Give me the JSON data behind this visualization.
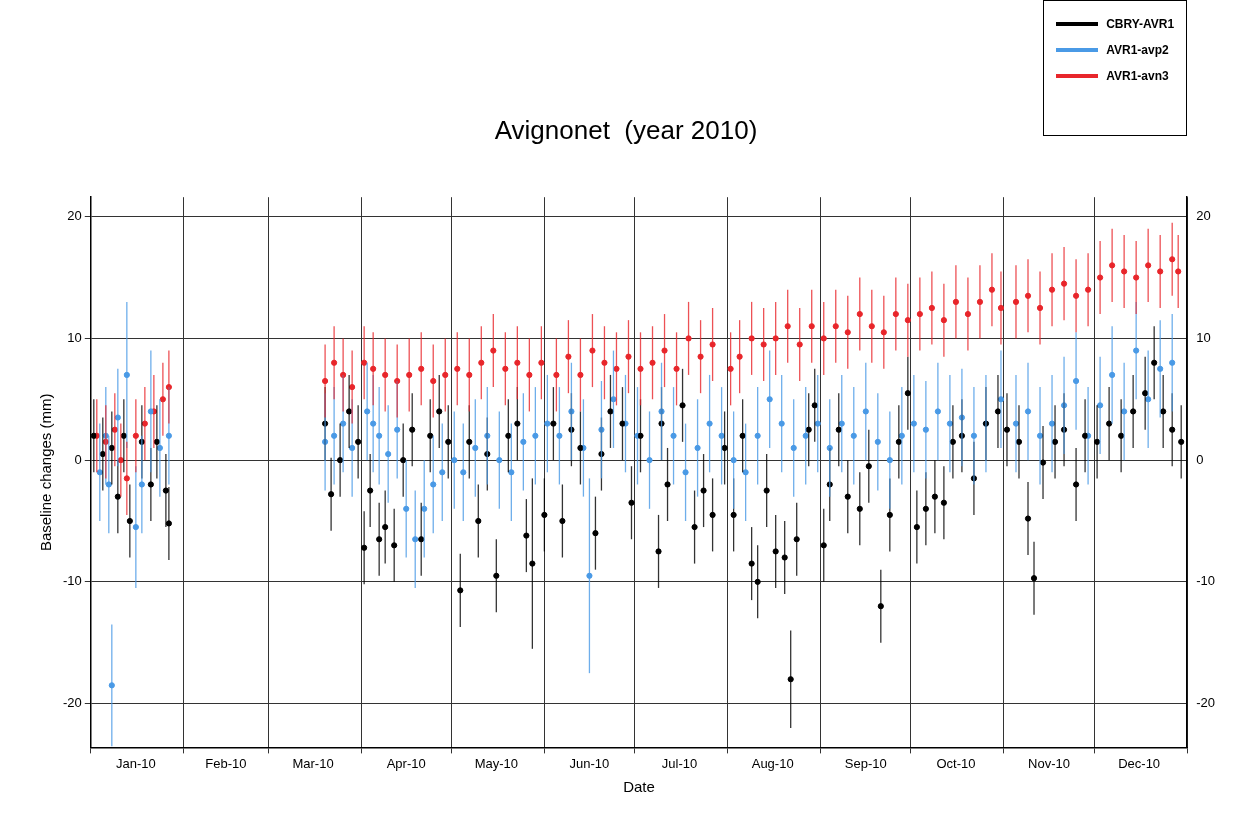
{
  "chart_data": {
    "type": "scatter",
    "title": "Avignonet  (year 2010)",
    "xlabel": "Date",
    "ylabel": "Baseline changes (mm)",
    "xlim": [
      "2010-01-01",
      "2011-01-01"
    ],
    "xticks": [
      {
        "value": "2010-01-01",
        "label": null
      },
      {
        "value": "2010-01-16",
        "label": "Jan-10"
      },
      {
        "value": "2010-02-01",
        "label": null
      },
      {
        "value": "2010-02-15",
        "label": "Feb-10"
      },
      {
        "value": "2010-03-01",
        "label": null
      },
      {
        "value": "2010-03-16",
        "label": "Mar-10"
      },
      {
        "value": "2010-04-01",
        "label": null
      },
      {
        "value": "2010-04-16",
        "label": "Apr-10"
      },
      {
        "value": "2010-05-01",
        "label": null
      },
      {
        "value": "2010-05-16",
        "label": "May-10"
      },
      {
        "value": "2010-06-01",
        "label": null
      },
      {
        "value": "2010-06-16",
        "label": "Jun-10"
      },
      {
        "value": "2010-07-01",
        "label": null
      },
      {
        "value": "2010-07-16",
        "label": "Jul-10"
      },
      {
        "value": "2010-08-01",
        "label": null
      },
      {
        "value": "2010-08-16",
        "label": "Aug-10"
      },
      {
        "value": "2010-09-01",
        "label": null
      },
      {
        "value": "2010-09-16",
        "label": "Sep-10"
      },
      {
        "value": "2010-10-01",
        "label": null
      },
      {
        "value": "2010-10-16",
        "label": "Oct-10"
      },
      {
        "value": "2010-11-01",
        "label": null
      },
      {
        "value": "2010-11-16",
        "label": "Nov-10"
      },
      {
        "value": "2010-12-01",
        "label": null
      },
      {
        "value": "2010-12-16",
        "label": "Dec-10"
      },
      {
        "value": "2011-01-01",
        "label": null
      }
    ],
    "ylim": [
      -23.6,
      21.6
    ],
    "yticks": [
      -20,
      -10,
      0,
      10,
      20
    ],
    "y2lim": [
      -23.6,
      21.6
    ],
    "y2ticks": [
      -20,
      -10,
      0,
      10,
      20
    ],
    "grid": true,
    "legend": "top right",
    "marker": "circle",
    "series": [
      {
        "name": "CBRY-AVR1",
        "color": "#000000",
        "x": [
          "2010-01-02",
          "2010-01-05",
          "2010-01-08",
          "2010-01-10",
          "2010-01-12",
          "2010-01-14",
          "2010-01-18",
          "2010-01-21",
          "2010-01-23",
          "2010-01-26",
          "2010-01-27",
          "2010-03-20",
          "2010-03-22",
          "2010-03-25",
          "2010-03-28",
          "2010-03-31",
          "2010-04-02",
          "2010-04-04",
          "2010-04-07",
          "2010-04-09",
          "2010-04-12",
          "2010-04-15",
          "2010-04-18",
          "2010-04-21",
          "2010-04-24",
          "2010-04-27",
          "2010-04-30",
          "2010-05-04",
          "2010-05-07",
          "2010-05-10",
          "2010-05-13",
          "2010-05-16",
          "2010-05-20",
          "2010-05-23",
          "2010-05-26",
          "2010-05-28",
          "2010-06-01",
          "2010-06-04",
          "2010-06-07",
          "2010-06-10",
          "2010-06-13",
          "2010-06-18",
          "2010-06-20",
          "2010-06-23",
          "2010-06-27",
          "2010-06-30",
          "2010-07-03",
          "2010-07-09",
          "2010-07-10",
          "2010-07-12",
          "2010-07-17",
          "2010-07-21",
          "2010-07-24",
          "2010-07-27",
          "2010-07-31",
          "2010-08-03",
          "2010-08-06",
          "2010-08-09",
          "2010-08-11",
          "2010-08-14",
          "2010-08-17",
          "2010-08-20",
          "2010-08-22",
          "2010-08-24",
          "2010-08-28",
          "2010-08-30",
          "2010-09-02",
          "2010-09-04",
          "2010-09-07",
          "2010-09-10",
          "2010-09-14",
          "2010-09-17",
          "2010-09-21",
          "2010-09-24",
          "2010-09-27",
          "2010-09-30",
          "2010-10-03",
          "2010-10-06",
          "2010-10-09",
          "2010-10-12",
          "2010-10-15",
          "2010-10-18",
          "2010-10-22",
          "2010-10-26",
          "2010-10-30",
          "2010-11-02",
          "2010-11-06",
          "2010-11-09",
          "2010-11-11",
          "2010-11-14",
          "2010-11-18",
          "2010-11-21",
          "2010-11-25",
          "2010-11-28",
          "2010-12-02",
          "2010-12-06",
          "2010-12-10",
          "2010-12-14",
          "2010-12-18",
          "2010-12-21",
          "2010-12-24",
          "2010-12-27",
          "2010-12-30"
        ],
        "values": [
          2,
          0.5,
          1,
          -3,
          2,
          -5,
          1.5,
          -2,
          1.5,
          -2.5,
          -5.2,
          3,
          -2.8,
          0,
          4,
          1.5,
          -7.2,
          -2.5,
          -6.5,
          -5.5,
          -7,
          0,
          2.5,
          -6.5,
          2,
          4,
          1.5,
          -10.7,
          1.5,
          -5,
          0.5,
          -9.5,
          2,
          3,
          -6.2,
          -8.5,
          -4.5,
          3,
          -5,
          2.5,
          1,
          -6,
          0.5,
          4,
          3,
          -3.5,
          2,
          -7.5,
          3,
          -2,
          4.5,
          -5.5,
          -2.5,
          -4.5,
          1,
          -4.5,
          2,
          -8.5,
          -10,
          -2.5,
          -7.5,
          -8,
          -18,
          -6.5,
          2.5,
          4.5,
          -7,
          -2,
          2.5,
          -3,
          -4,
          -0.5,
          -12,
          -4.5,
          1.5,
          5.5,
          -5.5,
          -4,
          -3,
          -3.5,
          1.5,
          2,
          -1.5,
          3,
          4,
          2.5,
          1.5,
          -4.8,
          -9.7,
          -0.2,
          1.5,
          2.5,
          -2,
          2,
          1.5,
          3,
          2,
          4,
          5.5,
          8,
          4,
          2.5,
          1.5
        ],
        "errors": [
          3,
          3,
          3,
          3,
          3,
          3,
          3,
          3,
          3,
          3,
          3,
          3,
          3,
          3,
          3,
          3,
          3,
          3,
          3,
          3,
          3,
          3,
          3,
          3,
          3,
          3,
          3,
          3,
          3,
          3,
          3,
          3,
          3,
          3,
          3,
          7,
          3,
          3,
          3,
          3,
          3,
          3,
          3,
          3,
          3,
          3,
          3,
          3,
          3,
          3,
          3,
          3,
          3,
          3,
          3,
          3,
          3,
          3,
          3,
          3,
          3,
          3,
          4,
          3,
          3,
          3,
          3,
          3,
          3,
          3,
          3,
          3,
          3,
          3,
          3,
          3,
          3,
          3,
          3,
          3,
          3,
          3,
          3,
          3,
          3,
          3,
          3,
          3,
          3,
          3,
          3,
          3,
          3,
          3,
          3,
          3,
          3,
          3,
          3,
          3,
          3,
          3,
          3
        ]
      },
      {
        "name": "AVR1-avp2",
        "color": "#4a9ae6",
        "x": [
          "2010-01-04",
          "2010-01-06",
          "2010-01-07",
          "2010-01-08",
          "2010-01-10",
          "2010-01-13",
          "2010-01-16",
          "2010-01-18",
          "2010-01-21",
          "2010-01-24",
          "2010-01-27",
          "2010-03-20",
          "2010-03-23",
          "2010-03-26",
          "2010-03-29",
          "2010-04-03",
          "2010-04-05",
          "2010-04-07",
          "2010-04-10",
          "2010-04-13",
          "2010-04-16",
          "2010-04-19",
          "2010-04-22",
          "2010-04-25",
          "2010-04-28",
          "2010-05-02",
          "2010-05-05",
          "2010-05-09",
          "2010-05-13",
          "2010-05-17",
          "2010-05-21",
          "2010-05-25",
          "2010-05-29",
          "2010-06-02",
          "2010-06-06",
          "2010-06-10",
          "2010-06-14",
          "2010-06-16",
          "2010-06-20",
          "2010-06-24",
          "2010-06-28",
          "2010-07-02",
          "2010-07-06",
          "2010-07-10",
          "2010-07-14",
          "2010-07-18",
          "2010-07-22",
          "2010-07-26",
          "2010-07-30",
          "2010-08-03",
          "2010-08-07",
          "2010-08-11",
          "2010-08-15",
          "2010-08-19",
          "2010-08-23",
          "2010-08-27",
          "2010-08-31",
          "2010-09-04",
          "2010-09-08",
          "2010-09-12",
          "2010-09-16",
          "2010-09-20",
          "2010-09-24",
          "2010-09-28",
          "2010-10-02",
          "2010-10-06",
          "2010-10-10",
          "2010-10-14",
          "2010-10-18",
          "2010-10-22",
          "2010-10-26",
          "2010-10-31",
          "2010-11-05",
          "2010-11-09",
          "2010-11-13",
          "2010-11-17",
          "2010-11-21",
          "2010-11-25",
          "2010-11-29",
          "2010-12-03",
          "2010-12-07",
          "2010-12-11",
          "2010-12-15",
          "2010-12-19",
          "2010-12-23",
          "2010-12-27"
        ],
        "values": [
          -1,
          2,
          -2,
          -18.5,
          3.5,
          7,
          -5.5,
          -2,
          4,
          1,
          2,
          1.5,
          2,
          3,
          1,
          4,
          3,
          2,
          0.5,
          2.5,
          -4,
          -6.5,
          -4,
          -2,
          -1,
          0,
          -1,
          1,
          2,
          0,
          -1,
          1.5,
          2,
          3,
          2,
          4,
          1,
          -9.5,
          2.5,
          5,
          3,
          2,
          0,
          4,
          2,
          -1,
          1,
          3,
          2,
          0,
          -1,
          2,
          5,
          3,
          1,
          2,
          3,
          1,
          3,
          2,
          4,
          1.5,
          0,
          2,
          3,
          2.5,
          4,
          3,
          3.5,
          2,
          3,
          5,
          3,
          4,
          2,
          3,
          4.5,
          6.5,
          2,
          4.5,
          7,
          4,
          9,
          5,
          7.5,
          8
        ],
        "errors": [
          4,
          4,
          4,
          5,
          4,
          6,
          5,
          4,
          5,
          4,
          4,
          4,
          4,
          4,
          4,
          4,
          4,
          4,
          4,
          4,
          4,
          4,
          4,
          4,
          4,
          4,
          4,
          4,
          4,
          4,
          4,
          4,
          4,
          4,
          4,
          4,
          4,
          8,
          4,
          4,
          4,
          4,
          4,
          4,
          4,
          4,
          4,
          4,
          4,
          4,
          4,
          4,
          4,
          4,
          4,
          4,
          4,
          4,
          4,
          4,
          4,
          4,
          4,
          4,
          4,
          4,
          4,
          4,
          4,
          4,
          4,
          4,
          4,
          4,
          4,
          4,
          4,
          4,
          4,
          4,
          4,
          4,
          4,
          4,
          4,
          4
        ]
      },
      {
        "name": "AVR1-avn3",
        "color": "#e8262b",
        "x": [
          "2010-01-03",
          "2010-01-06",
          "2010-01-09",
          "2010-01-11",
          "2010-01-13",
          "2010-01-16",
          "2010-01-19",
          "2010-01-22",
          "2010-01-25",
          "2010-01-27",
          "2010-03-20",
          "2010-03-23",
          "2010-03-26",
          "2010-03-29",
          "2010-04-02",
          "2010-04-05",
          "2010-04-09",
          "2010-04-13",
          "2010-04-17",
          "2010-04-21",
          "2010-04-25",
          "2010-04-29",
          "2010-05-03",
          "2010-05-07",
          "2010-05-11",
          "2010-05-15",
          "2010-05-19",
          "2010-05-23",
          "2010-05-27",
          "2010-05-31",
          "2010-06-05",
          "2010-06-09",
          "2010-06-13",
          "2010-06-17",
          "2010-06-21",
          "2010-06-25",
          "2010-06-29",
          "2010-07-03",
          "2010-07-07",
          "2010-07-11",
          "2010-07-15",
          "2010-07-19",
          "2010-07-23",
          "2010-07-27",
          "2010-08-02",
          "2010-08-05",
          "2010-08-09",
          "2010-08-13",
          "2010-08-17",
          "2010-08-21",
          "2010-08-25",
          "2010-08-29",
          "2010-09-02",
          "2010-09-06",
          "2010-09-10",
          "2010-09-14",
          "2010-09-18",
          "2010-09-22",
          "2010-09-26",
          "2010-09-30",
          "2010-10-04",
          "2010-10-08",
          "2010-10-12",
          "2010-10-16",
          "2010-10-20",
          "2010-10-24",
          "2010-10-28",
          "2010-10-31",
          "2010-11-05",
          "2010-11-09",
          "2010-11-13",
          "2010-11-17",
          "2010-11-21",
          "2010-11-25",
          "2010-11-29",
          "2010-12-03",
          "2010-12-07",
          "2010-12-11",
          "2010-12-15",
          "2010-12-19",
          "2010-12-23",
          "2010-12-27",
          "2010-12-29"
        ],
        "values": [
          2,
          1.5,
          2.5,
          0,
          -1.5,
          2,
          3,
          4,
          5,
          6,
          6.5,
          8,
          7,
          6,
          8,
          7.5,
          7,
          6.5,
          7,
          7.5,
          6.5,
          7,
          7.5,
          7,
          8,
          9,
          7.5,
          8,
          7,
          8,
          7,
          8.5,
          7,
          9,
          8,
          7.5,
          8.5,
          7.5,
          8,
          9,
          7.5,
          10,
          8.5,
          9.5,
          7.5,
          8.5,
          10,
          9.5,
          10,
          11,
          9.5,
          11,
          10,
          11,
          10.5,
          12,
          11,
          10.5,
          12,
          11.5,
          12,
          12.5,
          11.5,
          13,
          12,
          13,
          14,
          12.5,
          13,
          13.5,
          12.5,
          14,
          14.5,
          13.5,
          14,
          15,
          16,
          15.5,
          15,
          16,
          15.5,
          16.5,
          15.5
        ],
        "errors": [
          3,
          3,
          3,
          3,
          3,
          3,
          3,
          3,
          3,
          3,
          3,
          3,
          3,
          3,
          3,
          3,
          3,
          3,
          3,
          3,
          3,
          3,
          3,
          3,
          3,
          3,
          3,
          3,
          3,
          3,
          3,
          3,
          3,
          3,
          3,
          3,
          3,
          3,
          3,
          3,
          3,
          3,
          3,
          3,
          3,
          3,
          3,
          3,
          3,
          3,
          3,
          3,
          3,
          3,
          3,
          3,
          3,
          3,
          3,
          3,
          3,
          3,
          3,
          3,
          3,
          3,
          3,
          3,
          3,
          3,
          3,
          3,
          3,
          3,
          3,
          3,
          3,
          3,
          3,
          3,
          3,
          3,
          3
        ]
      }
    ]
  }
}
